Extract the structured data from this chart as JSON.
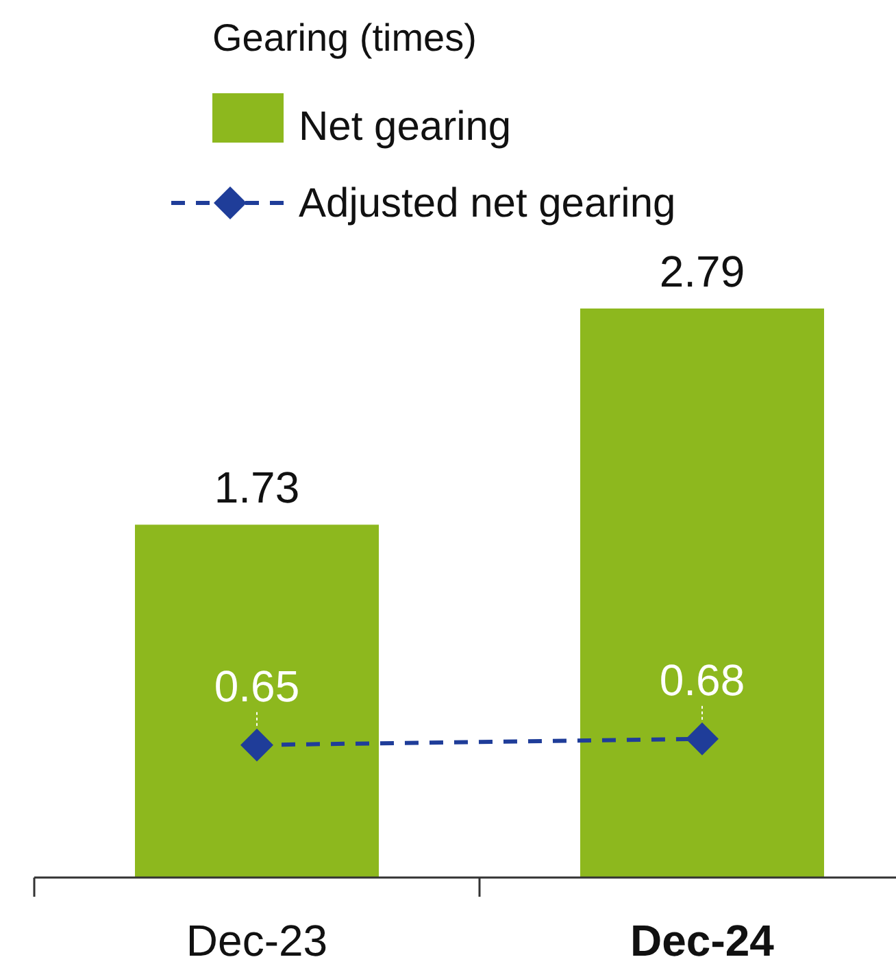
{
  "chart_data": {
    "type": "bar",
    "title": "Gearing (times)",
    "categories": [
      "Dec-23",
      "Dec-24"
    ],
    "series": [
      {
        "name": "Net gearing",
        "color": "#8db81e",
        "values": [
          1.73,
          2.79
        ]
      },
      {
        "name": "Adjusted net gearing",
        "type": "line",
        "color": "#1f3d99",
        "values": [
          0.65,
          0.68
        ],
        "marker": "diamond",
        "line_style": "dashed"
      }
    ],
    "data_labels": true,
    "legend": "top left"
  }
}
